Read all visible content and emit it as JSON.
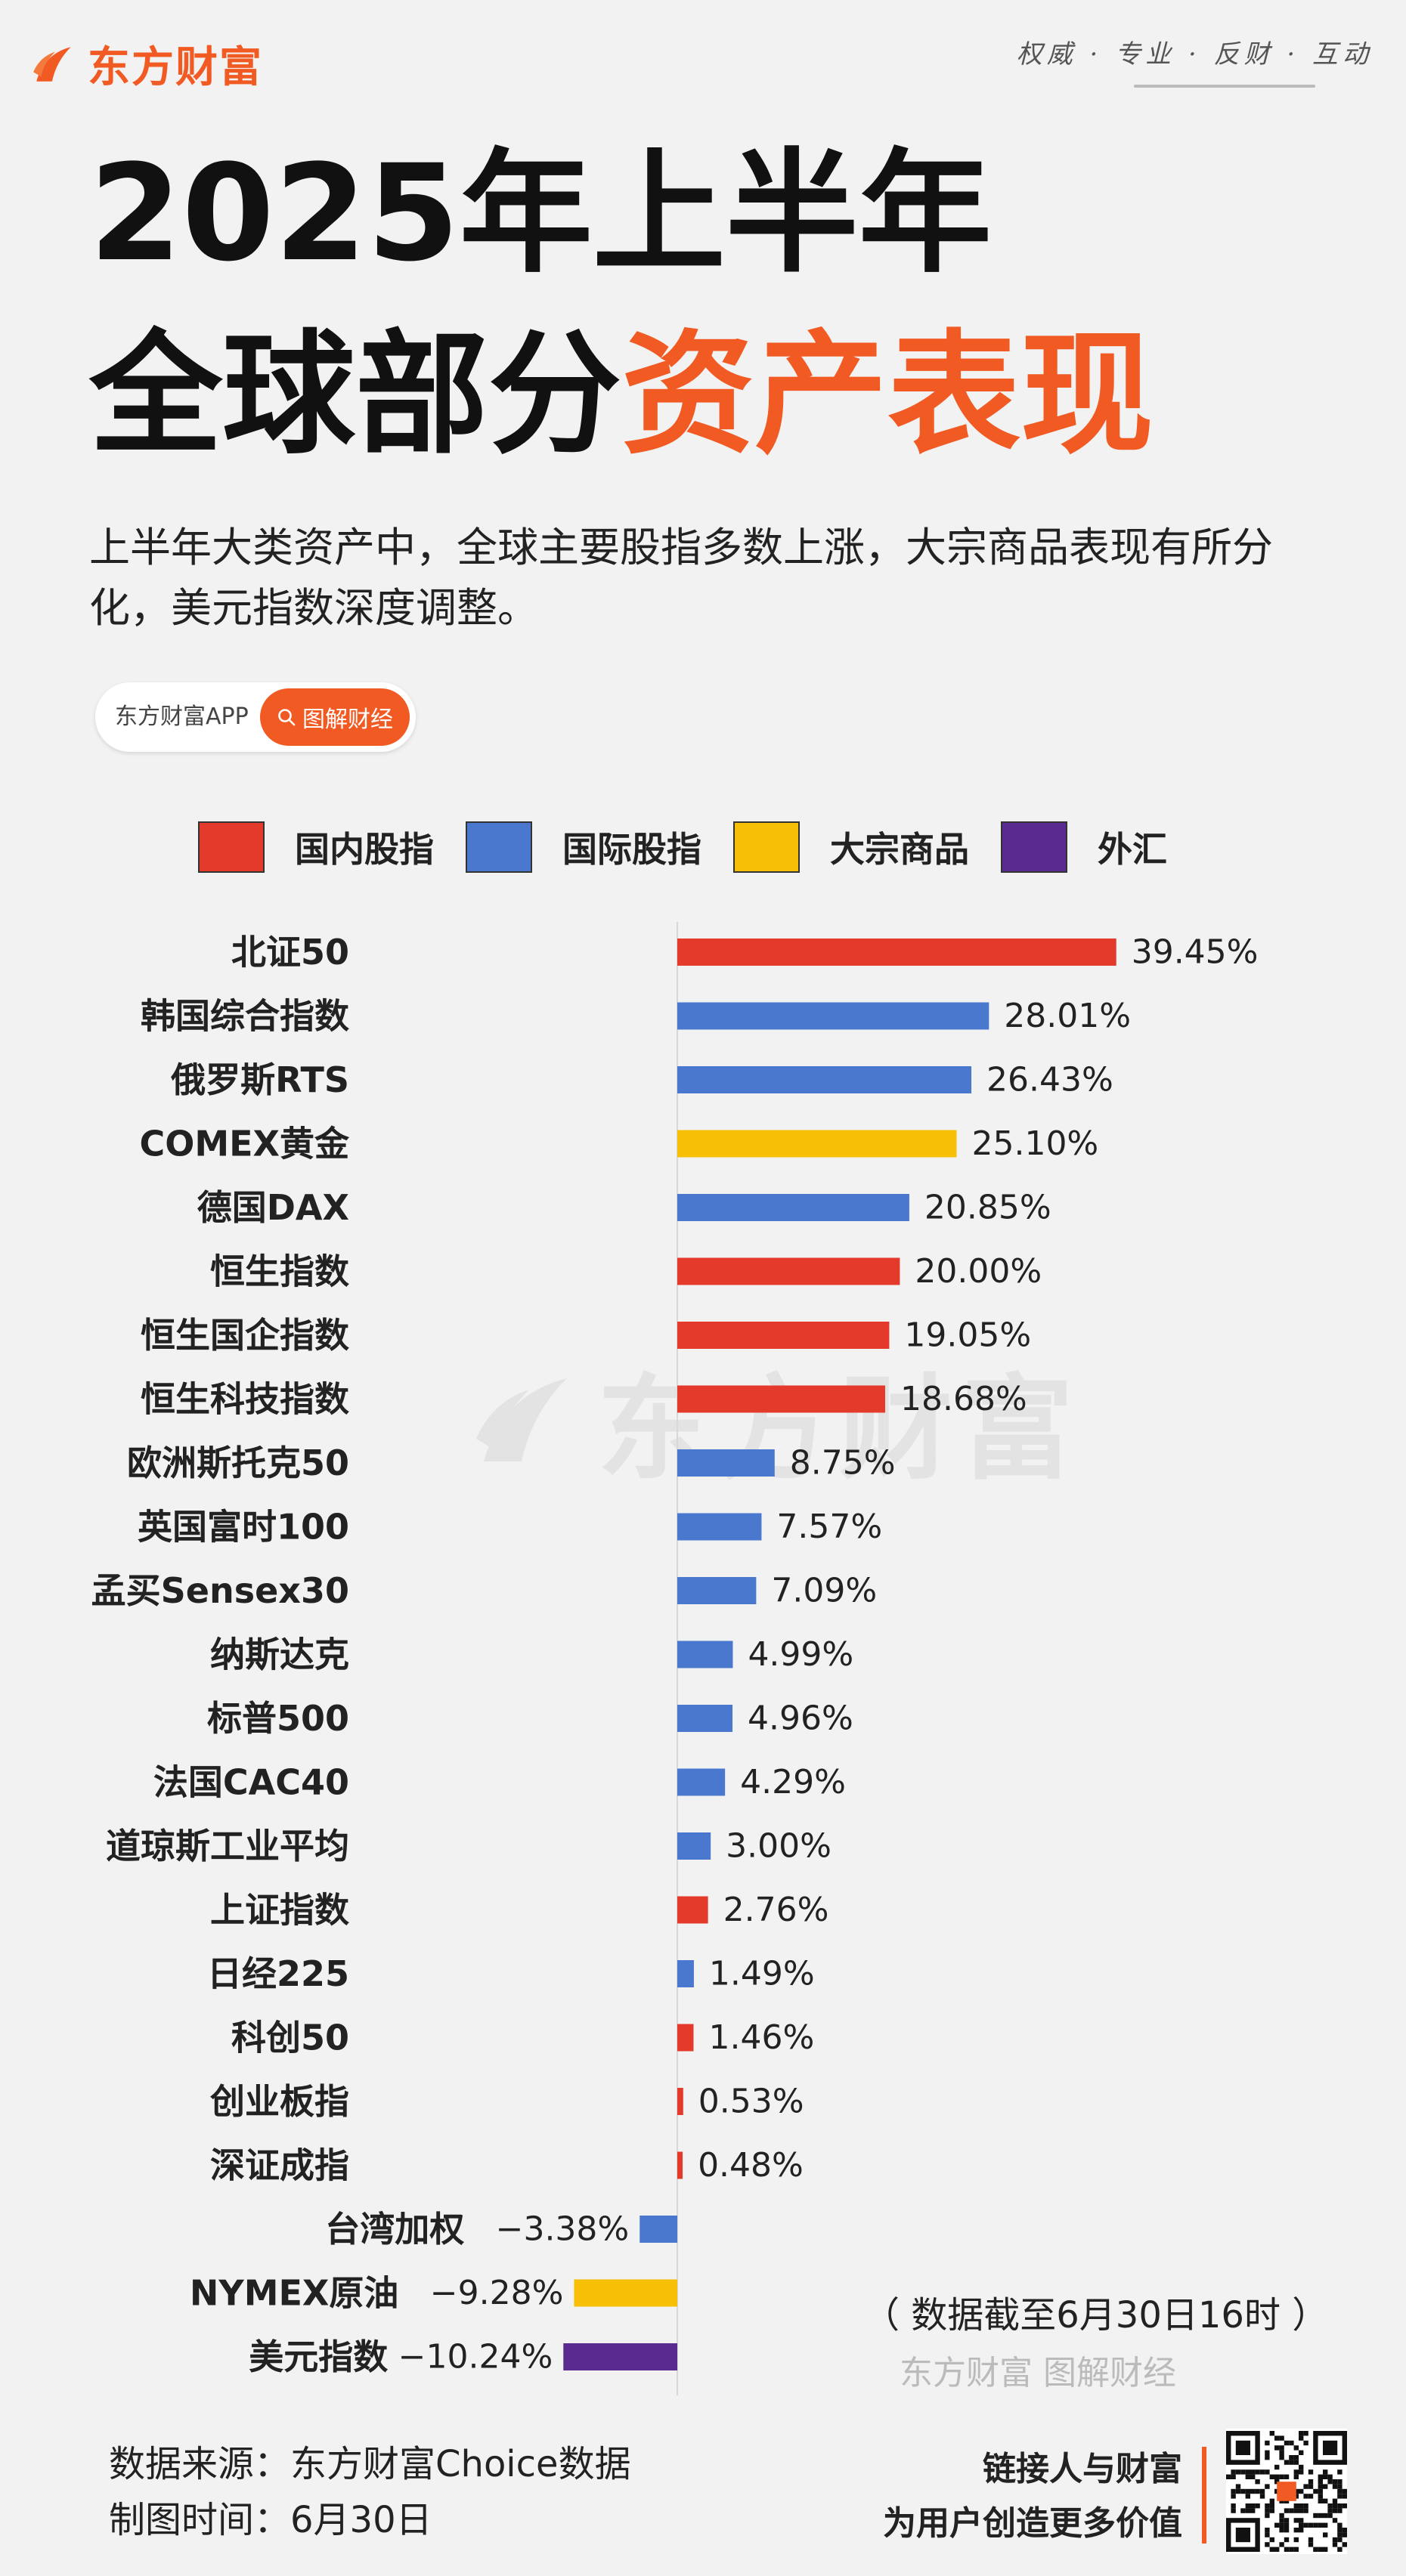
{
  "brand": {
    "name": "东方财富",
    "slogan": "权威 · 专业 · 反财 · 互动"
  },
  "title": {
    "line1": "2025年上半年",
    "line2_plain": "全球部分",
    "line2_highlight": "资产表现"
  },
  "description": "上半年大类资产中，全球主要股指多数上涨，大宗商品表现有所分化，美元指数深度调整。",
  "search": {
    "app_label": "东方财富APP",
    "button_label": "图解财经"
  },
  "colors": {
    "domestic": "#e43a2c",
    "international": "#4a78cf",
    "commodity": "#f7bf05",
    "fx": "#5b2a91",
    "accent": "#f15a22"
  },
  "chart_data": {
    "type": "bar",
    "orientation": "horizontal",
    "legend": [
      {
        "key": "domestic",
        "label": "国内股指"
      },
      {
        "key": "international",
        "label": "国际股指"
      },
      {
        "key": "commodity",
        "label": "大宗商品"
      },
      {
        "key": "fx",
        "label": "外汇"
      }
    ],
    "legend_position": "top",
    "grid": false,
    "xlim": [
      -11,
      41
    ],
    "unit": "%",
    "items": [
      {
        "name": "北证50",
        "value": 39.45,
        "label": "39.45%",
        "group": "domestic"
      },
      {
        "name": "韩国综合指数",
        "value": 28.01,
        "label": "28.01%",
        "group": "international"
      },
      {
        "name": "俄罗斯RTS",
        "value": 26.43,
        "label": "26.43%",
        "group": "international"
      },
      {
        "name": "COMEX黄金",
        "value": 25.1,
        "label": "25.10%",
        "group": "commodity"
      },
      {
        "name": "德国DAX",
        "value": 20.85,
        "label": "20.85%",
        "group": "international"
      },
      {
        "name": "恒生指数",
        "value": 20.0,
        "label": "20.00%",
        "group": "domestic"
      },
      {
        "name": "恒生国企指数",
        "value": 19.05,
        "label": "19.05%",
        "group": "domestic"
      },
      {
        "name": "恒生科技指数",
        "value": 18.68,
        "label": "18.68%",
        "group": "domestic"
      },
      {
        "name": "欧洲斯托克50",
        "value": 8.75,
        "label": "8.75%",
        "group": "international"
      },
      {
        "name": "英国富时100",
        "value": 7.57,
        "label": "7.57%",
        "group": "international"
      },
      {
        "name": "孟买Sensex30",
        "value": 7.09,
        "label": "7.09%",
        "group": "international"
      },
      {
        "name": "纳斯达克",
        "value": 4.99,
        "label": "4.99%",
        "group": "international"
      },
      {
        "name": "标普500",
        "value": 4.96,
        "label": "4.96%",
        "group": "international"
      },
      {
        "name": "法国CAC40",
        "value": 4.29,
        "label": "4.29%",
        "group": "international"
      },
      {
        "name": "道琼斯工业平均",
        "value": 3.0,
        "label": "3.00%",
        "group": "international"
      },
      {
        "name": "上证指数",
        "value": 2.76,
        "label": "2.76%",
        "group": "domestic"
      },
      {
        "name": "日经225",
        "value": 1.49,
        "label": "1.49%",
        "group": "international"
      },
      {
        "name": "科创50",
        "value": 1.46,
        "label": "1.46%",
        "group": "domestic"
      },
      {
        "name": "创业板指",
        "value": 0.53,
        "label": "0.53%",
        "group": "domestic"
      },
      {
        "name": "深证成指",
        "value": 0.48,
        "label": "0.48%",
        "group": "domestic"
      },
      {
        "name": "台湾加权",
        "value": -3.38,
        "label": "−3.38%",
        "group": "international"
      },
      {
        "name": "NYMEX原油",
        "value": -9.28,
        "label": "−9.28%",
        "group": "commodity"
      },
      {
        "name": "美元指数",
        "value": -10.24,
        "label": "−10.24%",
        "group": "fx"
      }
    ]
  },
  "watermark": {
    "text": "东方财富"
  },
  "note": "（ 数据截至6月30日16时 ）",
  "small_watermark": "东方财富 图解财经",
  "footer": {
    "source_line": "数据来源：东方财富Choice数据",
    "time_line": "制图时间：6月30日",
    "slogan_line1": "链接人与财富",
    "slogan_line2": "为用户创造更多价值",
    "qr_label": "QR code"
  }
}
